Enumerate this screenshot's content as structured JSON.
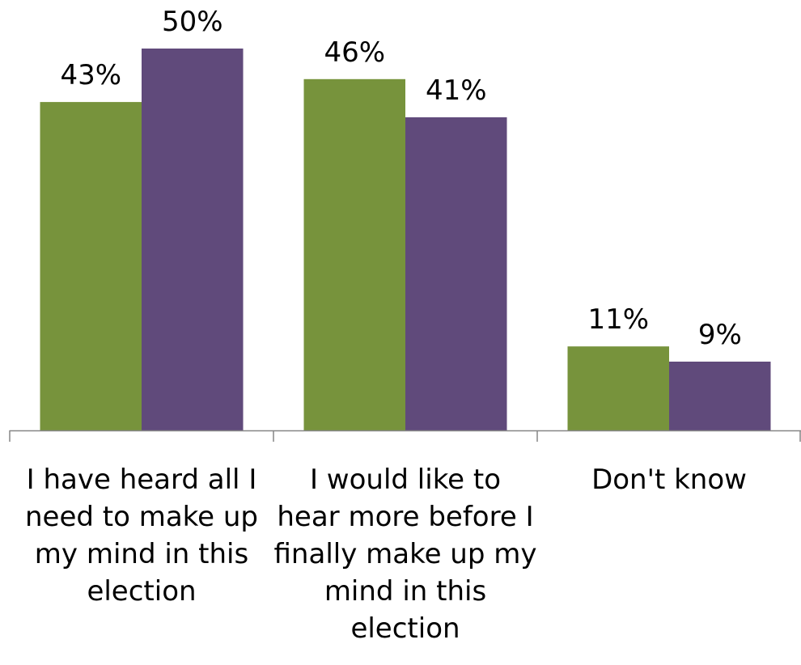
{
  "chart_data": {
    "type": "bar",
    "categories": [
      "I have heard all I need to make up my mind in this election",
      "I would like to hear more before I finally make up my mind in this election",
      "Don't know"
    ],
    "category_lines": [
      [
        "I have heard all I",
        "need to make up",
        "my mind in this",
        "election"
      ],
      [
        "I would like to",
        "hear more before I",
        "finally make up my",
        "mind in this",
        "election"
      ],
      [
        "Don't know"
      ]
    ],
    "series": [
      {
        "values": [
          43,
          46,
          11
        ],
        "labels": [
          "43%",
          "46%",
          "11%"
        ],
        "color": "#77933c"
      },
      {
        "values": [
          50,
          41,
          9
        ],
        "labels": [
          "50%",
          "41%",
          "9%"
        ],
        "color": "#604a7b"
      }
    ],
    "ylim": [
      0,
      55
    ],
    "grid": false,
    "legend": "none",
    "axis_color": "#868686"
  }
}
